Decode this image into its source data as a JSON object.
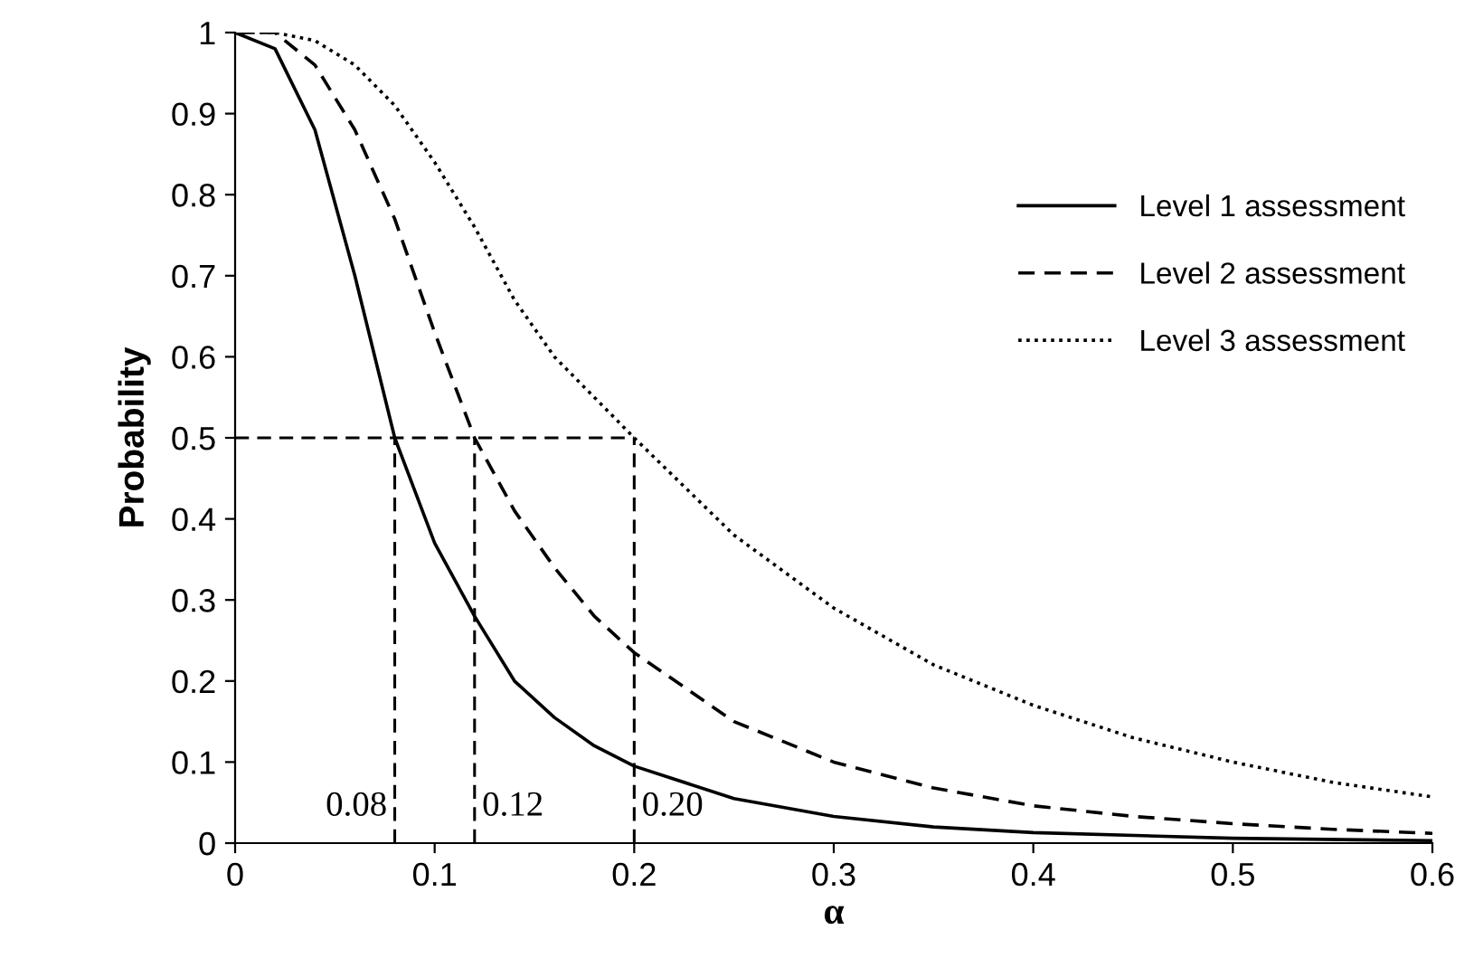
{
  "chart_data": {
    "type": "line",
    "xlabel": "α",
    "ylabel": "Probability",
    "xlim": [
      0,
      0.6
    ],
    "ylim": [
      0,
      1
    ],
    "xticks": [
      0,
      0.1,
      0.2,
      0.3,
      0.4,
      0.5,
      0.6
    ],
    "yticks": [
      0,
      0.1,
      0.2,
      0.3,
      0.4,
      0.5,
      0.6,
      0.7,
      0.8,
      0.9,
      1
    ],
    "grid": false,
    "legend": "right",
    "marker": "none",
    "series": [
      {
        "name": "Level 1 assessment",
        "color": "#000000",
        "line_style": "solid",
        "x": [
          0,
          0.02,
          0.04,
          0.06,
          0.08,
          0.1,
          0.12,
          0.14,
          0.16,
          0.18,
          0.2,
          0.25,
          0.3,
          0.35,
          0.4,
          0.5,
          0.6
        ],
        "values": [
          1,
          0.98,
          0.88,
          0.7,
          0.5,
          0.37,
          0.28,
          0.2,
          0.155,
          0.12,
          0.095,
          0.055,
          0.033,
          0.02,
          0.013,
          0.006,
          0.003
        ]
      },
      {
        "name": "Level 2 assessment",
        "color": "#000000",
        "line_style": "dashed",
        "x": [
          0,
          0.02,
          0.04,
          0.06,
          0.08,
          0.1,
          0.12,
          0.14,
          0.16,
          0.18,
          0.2,
          0.25,
          0.3,
          0.35,
          0.4,
          0.45,
          0.5,
          0.55,
          0.6
        ],
        "values": [
          1,
          1,
          0.96,
          0.88,
          0.77,
          0.63,
          0.5,
          0.41,
          0.34,
          0.28,
          0.235,
          0.15,
          0.1,
          0.068,
          0.046,
          0.033,
          0.024,
          0.017,
          0.012
        ]
      },
      {
        "name": "Level 3 assessment",
        "color": "#000000",
        "line_style": "dotted",
        "x": [
          0,
          0.02,
          0.04,
          0.06,
          0.08,
          0.1,
          0.12,
          0.14,
          0.16,
          0.18,
          0.2,
          0.25,
          0.3,
          0.35,
          0.4,
          0.45,
          0.5,
          0.55,
          0.6
        ],
        "values": [
          1,
          1,
          0.99,
          0.96,
          0.91,
          0.84,
          0.76,
          0.67,
          0.6,
          0.55,
          0.5,
          0.38,
          0.29,
          0.22,
          0.17,
          0.13,
          0.1,
          0.075,
          0.057
        ]
      },
      {
        "color": "#000000",
        "line_style": "dashed",
        "x": [
          0,
          0.2
        ],
        "values": [
          0.5,
          0.5
        ]
      },
      {
        "color": "#000000",
        "line_style": "dashed",
        "x": [
          0.08,
          0.08
        ],
        "values": [
          0,
          0.5
        ]
      },
      {
        "color": "#000000",
        "line_style": "dashed",
        "x": [
          0.12,
          0.12
        ],
        "values": [
          0,
          0.5
        ]
      },
      {
        "color": "#000000",
        "line_style": "dashed",
        "x": [
          0.2,
          0.2
        ],
        "values": [
          0,
          0.5
        ]
      }
    ],
    "annotations": [
      {
        "text": "0.08",
        "x": 0.08,
        "y": 0
      },
      {
        "text": "0.12",
        "x": 0.12,
        "y": 0
      },
      {
        "text": "0.20",
        "x": 0.2,
        "y": 0
      }
    ]
  }
}
